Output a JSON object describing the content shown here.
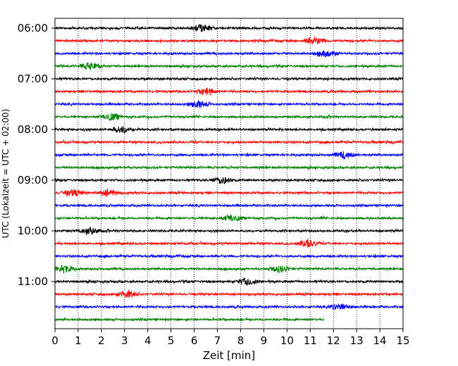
{
  "chart_data": {
    "type": "line",
    "title": "",
    "xlabel": "Zeit  [min]",
    "ylabel": "UTC (Lokalzeit = UTC + 02:00)",
    "xlim": [
      0,
      15
    ],
    "x_ticks": [
      "0",
      "1",
      "2",
      "3",
      "4",
      "5",
      "6",
      "7",
      "8",
      "9",
      "10",
      "11",
      "12",
      "13",
      "14",
      "15"
    ],
    "y_ticks": [
      "06:00",
      "07:00",
      "08:00",
      "09:00",
      "10:00",
      "11:00"
    ],
    "grid": "vertical-dotted",
    "trace_interval_min": 15,
    "first_trace": "06:00",
    "trace_colors": [
      "#000000",
      "#ff0000",
      "#0000ff",
      "#008000"
    ],
    "last_trace_end_min": 11.6,
    "traces": [
      {
        "time": "06:00",
        "color": "#000000",
        "events": [
          6.3
        ]
      },
      {
        "time": "06:15",
        "color": "#ff0000",
        "events": [
          11.2
        ]
      },
      {
        "time": "06:30",
        "color": "#0000ff",
        "events": [
          11.7
        ]
      },
      {
        "time": "06:45",
        "color": "#008000",
        "events": [
          1.5
        ]
      },
      {
        "time": "07:00",
        "color": "#000000",
        "events": []
      },
      {
        "time": "07:15",
        "color": "#ff0000",
        "events": [
          6.55
        ]
      },
      {
        "time": "07:30",
        "color": "#0000ff",
        "events": [
          6.2
        ]
      },
      {
        "time": "07:45",
        "color": "#008000",
        "events": [
          2.4
        ]
      },
      {
        "time": "08:00",
        "color": "#000000",
        "events": [
          2.9
        ]
      },
      {
        "time": "08:15",
        "color": "#ff0000",
        "events": []
      },
      {
        "time": "08:30",
        "color": "#0000ff",
        "events": [
          12.5
        ]
      },
      {
        "time": "08:45",
        "color": "#008000",
        "events": []
      },
      {
        "time": "09:00",
        "color": "#000000",
        "events": [
          7.2
        ]
      },
      {
        "time": "09:15",
        "color": "#ff0000",
        "events": [
          0.8,
          2.3
        ]
      },
      {
        "time": "09:30",
        "color": "#0000ff",
        "events": []
      },
      {
        "time": "09:45",
        "color": "#008000",
        "events": [
          7.6
        ]
      },
      {
        "time": "10:00",
        "color": "#000000",
        "events": [
          1.5
        ]
      },
      {
        "time": "10:15",
        "color": "#ff0000",
        "events": [
          10.9
        ]
      },
      {
        "time": "10:30",
        "color": "#0000ff",
        "events": []
      },
      {
        "time": "10:45",
        "color": "#008000",
        "events": [
          0.4,
          9.7
        ]
      },
      {
        "time": "11:00",
        "color": "#000000",
        "events": [
          8.3
        ]
      },
      {
        "time": "11:15",
        "color": "#ff0000",
        "events": [
          3.1
        ]
      },
      {
        "time": "11:30",
        "color": "#0000ff",
        "events": [
          12.3
        ]
      },
      {
        "time": "11:45",
        "color": "#008000",
        "events": []
      }
    ]
  }
}
